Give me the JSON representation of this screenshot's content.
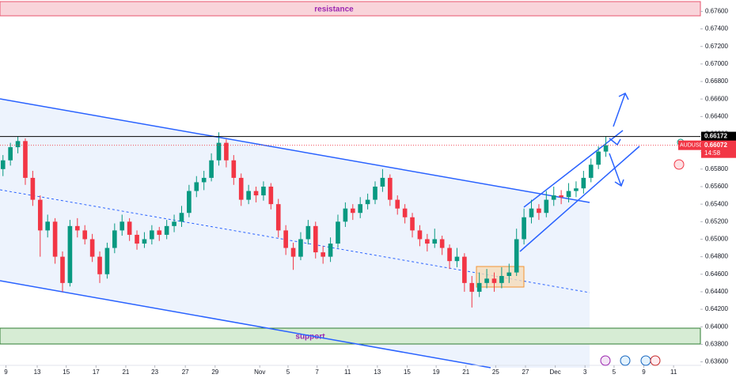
{
  "chart_data": {
    "type": "candlestick",
    "symbol": "AUDUSD",
    "timer": "14:58",
    "level": 0.66172,
    "last_price": 0.66072,
    "zones": {
      "resistance": "resistance",
      "support": "support"
    },
    "up_color": "#089981",
    "down_color": "#f23645",
    "ylim": [
      0.6773,
      0.6356
    ],
    "xlim": [
      -0.4,
      93.7
    ],
    "yticks": [
      {
        "value": 0.676,
        "label": "0.67600"
      },
      {
        "value": 0.674,
        "label": "0.67400"
      },
      {
        "value": 0.672,
        "label": "0.67200"
      },
      {
        "value": 0.67,
        "label": "0.67000"
      },
      {
        "value": 0.668,
        "label": "0.66800"
      },
      {
        "value": 0.666,
        "label": "0.66600"
      },
      {
        "value": 0.664,
        "label": "0.66400"
      },
      {
        "value": 0.662,
        "label": "0.66200"
      },
      {
        "value": 0.66,
        "label": "0.66000"
      },
      {
        "value": 0.658,
        "label": "0.65800"
      },
      {
        "value": 0.656,
        "label": "0.65600"
      },
      {
        "value": 0.654,
        "label": "0.65400"
      },
      {
        "value": 0.652,
        "label": "0.65200"
      },
      {
        "value": 0.65,
        "label": "0.65000"
      },
      {
        "value": 0.648,
        "label": "0.64800"
      },
      {
        "value": 0.646,
        "label": "0.64600"
      },
      {
        "value": 0.644,
        "label": "0.64400"
      },
      {
        "value": 0.642,
        "label": "0.64200"
      },
      {
        "value": 0.64,
        "label": "0.64000"
      },
      {
        "value": 0.638,
        "label": "0.63800"
      },
      {
        "value": 0.636,
        "label": "0.63600"
      }
    ],
    "xticks": [
      {
        "value": 0.4,
        "label": "9"
      },
      {
        "value": 4.6,
        "label": "13"
      },
      {
        "value": 8.5,
        "label": "15"
      },
      {
        "value": 12.5,
        "label": "17"
      },
      {
        "value": 16.5,
        "label": "21"
      },
      {
        "value": 20.4,
        "label": "23"
      },
      {
        "value": 24.5,
        "label": "27"
      },
      {
        "value": 28.5,
        "label": "29"
      },
      {
        "value": 34.5,
        "label": "Nov"
      },
      {
        "value": 38.3,
        "label": "5"
      },
      {
        "value": 42.2,
        "label": "7"
      },
      {
        "value": 46.3,
        "label": "11"
      },
      {
        "value": 50.3,
        "label": "13"
      },
      {
        "value": 54.3,
        "label": "15"
      },
      {
        "value": 58.2,
        "label": "19"
      },
      {
        "value": 62.2,
        "label": "21"
      },
      {
        "value": 66.2,
        "label": "25"
      },
      {
        "value": 70.2,
        "label": "27"
      },
      {
        "value": 74.2,
        "label": "Dec"
      },
      {
        "value": 78.2,
        "label": "3"
      },
      {
        "value": 82.1,
        "label": "5"
      },
      {
        "value": 86.1,
        "label": "9"
      },
      {
        "value": 90.1,
        "label": "11"
      }
    ],
    "candles": [
      [
        0.658,
        0.6596,
        0.6572,
        0.659
      ],
      [
        0.659,
        0.661,
        0.6584,
        0.6605
      ],
      [
        0.6605,
        0.6617,
        0.6598,
        0.6612
      ],
      [
        0.6612,
        0.6615,
        0.6562,
        0.657
      ],
      [
        0.657,
        0.6578,
        0.6538,
        0.6545
      ],
      [
        0.6545,
        0.655,
        0.648,
        0.651
      ],
      [
        0.651,
        0.6528,
        0.6502,
        0.652
      ],
      [
        0.652,
        0.6524,
        0.6472,
        0.648
      ],
      [
        0.648,
        0.6486,
        0.644,
        0.645
      ],
      [
        0.645,
        0.6522,
        0.6446,
        0.6515
      ],
      [
        0.6515,
        0.6524,
        0.6502,
        0.651
      ],
      [
        0.651,
        0.6516,
        0.6494,
        0.65
      ],
      [
        0.65,
        0.6506,
        0.6474,
        0.648
      ],
      [
        0.648,
        0.6486,
        0.645,
        0.646
      ],
      [
        0.646,
        0.6496,
        0.6455,
        0.649
      ],
      [
        0.649,
        0.6518,
        0.6484,
        0.651
      ],
      [
        0.651,
        0.6528,
        0.6504,
        0.652
      ],
      [
        0.652,
        0.6524,
        0.6498,
        0.6505
      ],
      [
        0.6505,
        0.651,
        0.6488,
        0.6495
      ],
      [
        0.6495,
        0.6508,
        0.649,
        0.65
      ],
      [
        0.65,
        0.6516,
        0.6494,
        0.651
      ],
      [
        0.651,
        0.6514,
        0.6498,
        0.6505
      ],
      [
        0.6505,
        0.6522,
        0.65,
        0.6515
      ],
      [
        0.6515,
        0.6528,
        0.6508,
        0.652
      ],
      [
        0.652,
        0.6538,
        0.6514,
        0.653
      ],
      [
        0.653,
        0.6562,
        0.6525,
        0.6555
      ],
      [
        0.6555,
        0.6572,
        0.6548,
        0.6565
      ],
      [
        0.6565,
        0.6578,
        0.6556,
        0.657
      ],
      [
        0.657,
        0.6598,
        0.6566,
        0.659
      ],
      [
        0.659,
        0.6622,
        0.6584,
        0.661
      ],
      [
        0.661,
        0.6614,
        0.6582,
        0.659
      ],
      [
        0.659,
        0.6596,
        0.6562,
        0.657
      ],
      [
        0.657,
        0.6575,
        0.6538,
        0.6545
      ],
      [
        0.6545,
        0.6562,
        0.654,
        0.6555
      ],
      [
        0.6555,
        0.656,
        0.6542,
        0.655
      ],
      [
        0.655,
        0.6566,
        0.6544,
        0.656
      ],
      [
        0.656,
        0.6564,
        0.6534,
        0.654
      ],
      [
        0.654,
        0.6546,
        0.6502,
        0.651
      ],
      [
        0.651,
        0.6516,
        0.6482,
        0.649
      ],
      [
        0.649,
        0.6496,
        0.6465,
        0.648
      ],
      [
        0.648,
        0.6508,
        0.6476,
        0.65
      ],
      [
        0.65,
        0.6522,
        0.6494,
        0.6515
      ],
      [
        0.6515,
        0.652,
        0.6478,
        0.6485
      ],
      [
        0.6485,
        0.6492,
        0.6472,
        0.648
      ],
      [
        0.648,
        0.6502,
        0.6474,
        0.6495
      ],
      [
        0.6495,
        0.6528,
        0.649,
        0.652
      ],
      [
        0.652,
        0.6542,
        0.6514,
        0.6535
      ],
      [
        0.6535,
        0.654,
        0.6522,
        0.653
      ],
      [
        0.653,
        0.6548,
        0.6524,
        0.654
      ],
      [
        0.654,
        0.6552,
        0.6534,
        0.6545
      ],
      [
        0.6545,
        0.6566,
        0.654,
        0.656
      ],
      [
        0.656,
        0.658,
        0.6554,
        0.657
      ],
      [
        0.657,
        0.6574,
        0.6538,
        0.6545
      ],
      [
        0.6545,
        0.655,
        0.6528,
        0.6535
      ],
      [
        0.6535,
        0.654,
        0.6518,
        0.6525
      ],
      [
        0.6525,
        0.653,
        0.6502,
        0.651
      ],
      [
        0.651,
        0.6516,
        0.6492,
        0.65
      ],
      [
        0.65,
        0.6506,
        0.6486,
        0.6495
      ],
      [
        0.6495,
        0.6512,
        0.649,
        0.65
      ],
      [
        0.65,
        0.6504,
        0.6482,
        0.649
      ],
      [
        0.649,
        0.6494,
        0.6466,
        0.6475
      ],
      [
        0.6475,
        0.649,
        0.6468,
        0.648
      ],
      [
        0.648,
        0.6484,
        0.644,
        0.645
      ],
      [
        0.645,
        0.6458,
        0.6422,
        0.644
      ],
      [
        0.644,
        0.6462,
        0.6434,
        0.645
      ],
      [
        0.645,
        0.6466,
        0.6444,
        0.6455
      ],
      [
        0.6455,
        0.6462,
        0.644,
        0.645
      ],
      [
        0.645,
        0.6468,
        0.6444,
        0.6458
      ],
      [
        0.6458,
        0.6472,
        0.645,
        0.6462
      ],
      [
        0.6462,
        0.6512,
        0.6458,
        0.65
      ],
      [
        0.65,
        0.6535,
        0.6494,
        0.6525
      ],
      [
        0.6525,
        0.6545,
        0.6518,
        0.6535
      ],
      [
        0.6535,
        0.654,
        0.6522,
        0.653
      ],
      [
        0.653,
        0.6555,
        0.6525,
        0.6545
      ],
      [
        0.6545,
        0.656,
        0.6538,
        0.655
      ],
      [
        0.655,
        0.6556,
        0.654,
        0.6548
      ],
      [
        0.6548,
        0.6564,
        0.6542,
        0.6555
      ],
      [
        0.6555,
        0.6566,
        0.6548,
        0.6558
      ],
      [
        0.6558,
        0.6578,
        0.6552,
        0.657
      ],
      [
        0.657,
        0.6592,
        0.6565,
        0.6585
      ],
      [
        0.6585,
        0.6606,
        0.658,
        0.66
      ],
      [
        0.66,
        0.6617,
        0.6594,
        0.66072
      ]
    ]
  }
}
